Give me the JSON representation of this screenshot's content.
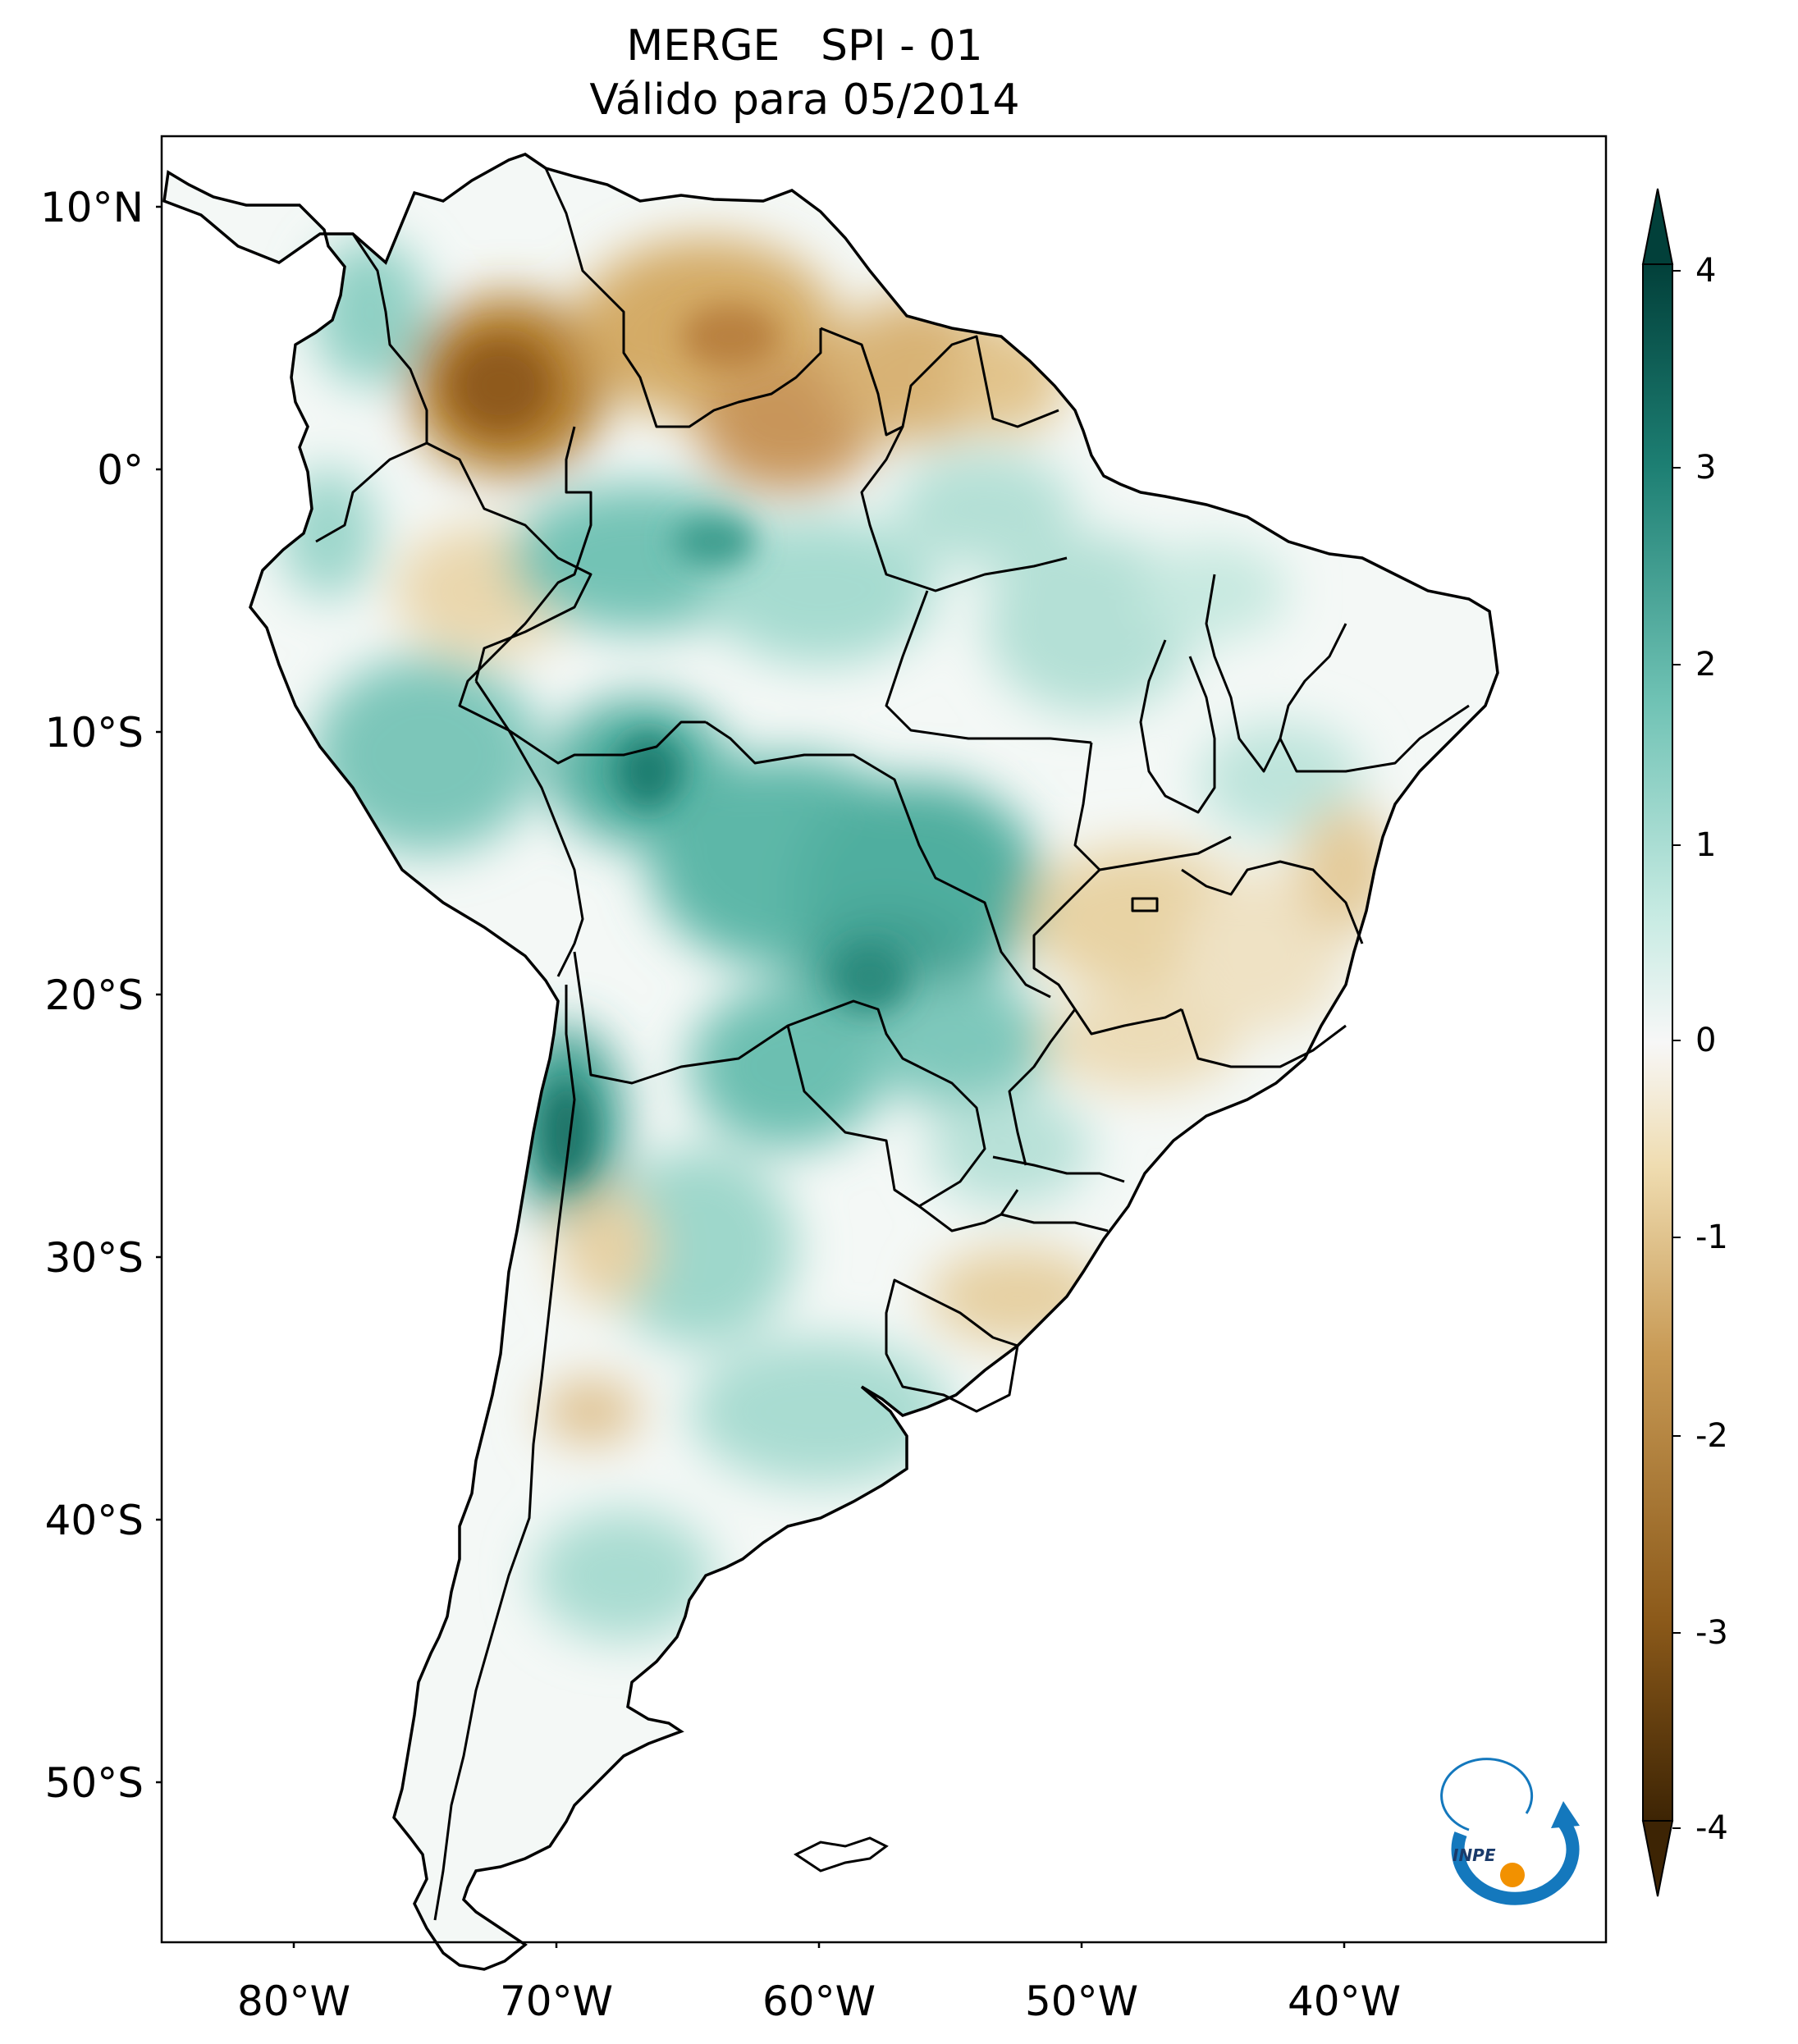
{
  "title": {
    "line1": "MERGE   SPI - 01",
    "line2": "Válido para 05/2014"
  },
  "axes": {
    "latitude_labels": [
      "10°N",
      "0°",
      "10°S",
      "20°S",
      "30°S",
      "40°S",
      "50°S"
    ],
    "longitude_labels": [
      "80°W",
      "70°W",
      "60°W",
      "50°W",
      "40°W"
    ]
  },
  "colorbar": {
    "tick_labels": [
      "4",
      "3",
      "2",
      "1",
      "0",
      "-1",
      "-2",
      "-3",
      "-4"
    ],
    "range": [
      -4,
      4
    ],
    "extend": "both",
    "colormap": "BrBG",
    "colors": {
      "min": "#3d2404",
      "dry_strong": "#8c5a1a",
      "dry_mid": "#c89a55",
      "dry_light": "#efdcb0",
      "neutral": "#f7f7f7",
      "wet_light": "#c8ebe3",
      "wet_mid": "#6fc2b4",
      "wet_strong": "#1d7f73",
      "max": "#02403a"
    }
  },
  "logo": {
    "text": "INPE",
    "colors": {
      "arc": "#1478bd",
      "dot": "#f29100"
    }
  },
  "map": {
    "variable": "SPI-01",
    "source": "MERGE",
    "period": "05/2014",
    "lon_range": [
      -85,
      -30
    ],
    "lat_range": [
      -56,
      13
    ]
  }
}
